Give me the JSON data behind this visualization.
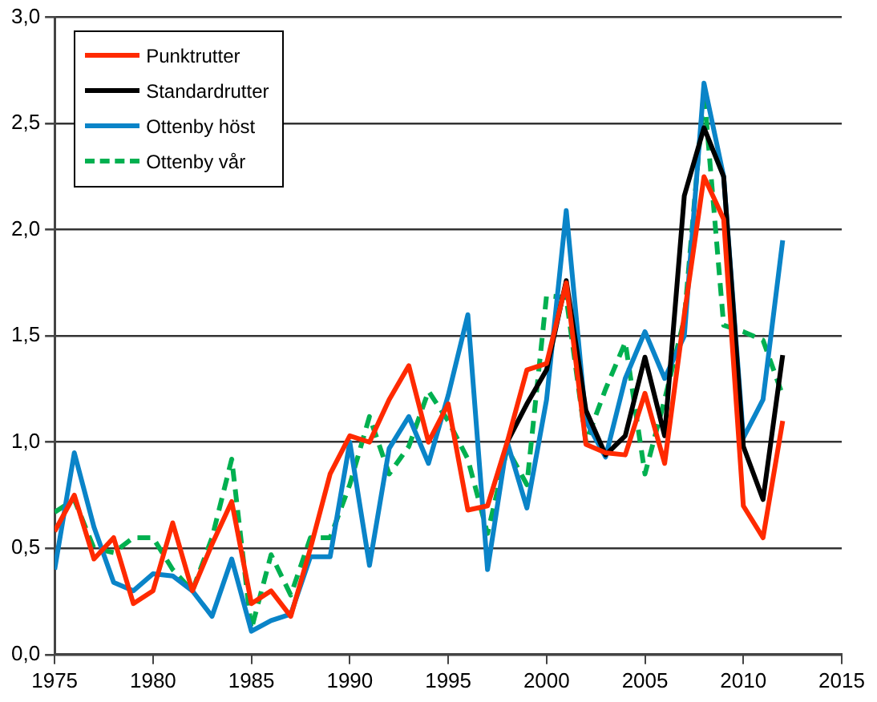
{
  "chart_data": {
    "type": "line",
    "x": [
      1975,
      1976,
      1977,
      1978,
      1979,
      1980,
      1981,
      1982,
      1983,
      1984,
      1985,
      1986,
      1987,
      1988,
      1989,
      1990,
      1991,
      1992,
      1993,
      1994,
      1995,
      1996,
      1997,
      1998,
      1999,
      2000,
      2001,
      2002,
      2003,
      2004,
      2005,
      2006,
      2007,
      2008,
      2009,
      2010,
      2011,
      2012
    ],
    "series": [
      {
        "name": "Punktrutter",
        "color": "#ff2a00",
        "values": [
          0.58,
          0.75,
          0.45,
          0.55,
          0.24,
          0.3,
          0.62,
          0.3,
          0.52,
          0.72,
          0.24,
          0.3,
          0.18,
          0.5,
          0.85,
          1.03,
          1.0,
          1.2,
          1.36,
          1.0,
          1.18,
          0.68,
          0.7,
          1.0,
          1.34,
          1.37,
          1.75,
          0.99,
          0.95,
          0.94,
          1.23,
          0.9,
          1.6,
          2.25,
          2.05,
          0.7,
          0.55,
          1.1
        ]
      },
      {
        "name": "Standardrutter",
        "color": "#000000",
        "values": [
          null,
          null,
          null,
          null,
          null,
          null,
          null,
          null,
          null,
          null,
          null,
          null,
          null,
          null,
          null,
          null,
          null,
          null,
          null,
          null,
          null,
          null,
          null,
          1.0,
          1.18,
          1.34,
          1.76,
          1.15,
          0.94,
          1.03,
          1.4,
          1.03,
          2.16,
          2.48,
          2.25,
          0.98,
          0.73,
          1.41
        ]
      },
      {
        "name": "Ottenby höst",
        "color": "#0a84c8",
        "values": [
          0.4,
          0.95,
          0.6,
          0.34,
          0.3,
          0.38,
          0.37,
          0.3,
          0.18,
          0.45,
          0.11,
          0.16,
          0.19,
          0.46,
          0.46,
          1.0,
          0.42,
          0.97,
          1.12,
          0.9,
          1.22,
          1.6,
          0.4,
          1.0,
          0.69,
          1.2,
          2.09,
          1.1,
          0.93,
          1.3,
          1.52,
          1.3,
          1.5,
          2.69,
          2.25,
          1.02,
          1.2,
          1.95
        ]
      },
      {
        "name": "Ottenby vår",
        "color": "#00b050",
        "line_style": "dashed",
        "values": [
          0.67,
          0.73,
          0.5,
          0.48,
          0.55,
          0.55,
          0.4,
          0.3,
          0.55,
          0.92,
          0.12,
          0.47,
          0.28,
          0.55,
          0.55,
          0.8,
          1.12,
          0.85,
          0.98,
          1.24,
          1.1,
          0.92,
          0.57,
          0.97,
          0.8,
          1.69,
          1.68,
          1.0,
          1.25,
          1.47,
          0.85,
          1.2,
          1.58,
          2.65,
          1.55,
          1.52,
          1.48,
          1.22
        ]
      }
    ],
    "xlim": [
      1975,
      2015
    ],
    "xticks": [
      1975,
      1980,
      1985,
      1990,
      1995,
      2000,
      2005,
      2010,
      2015
    ],
    "ylim": [
      0,
      3
    ],
    "yticks": [
      {
        "value": 0,
        "label": "0,0"
      },
      {
        "value": 0.5,
        "label": "0,5"
      },
      {
        "value": 1,
        "label": "1,0"
      },
      {
        "value": 1.5,
        "label": "1,5"
      },
      {
        "value": 2,
        "label": "2,0"
      },
      {
        "value": 2.5,
        "label": "2,5"
      },
      {
        "value": 3,
        "label": "3,0"
      }
    ],
    "grid": "y",
    "legend": "top left",
    "line_style": "solid",
    "marker": "none"
  }
}
